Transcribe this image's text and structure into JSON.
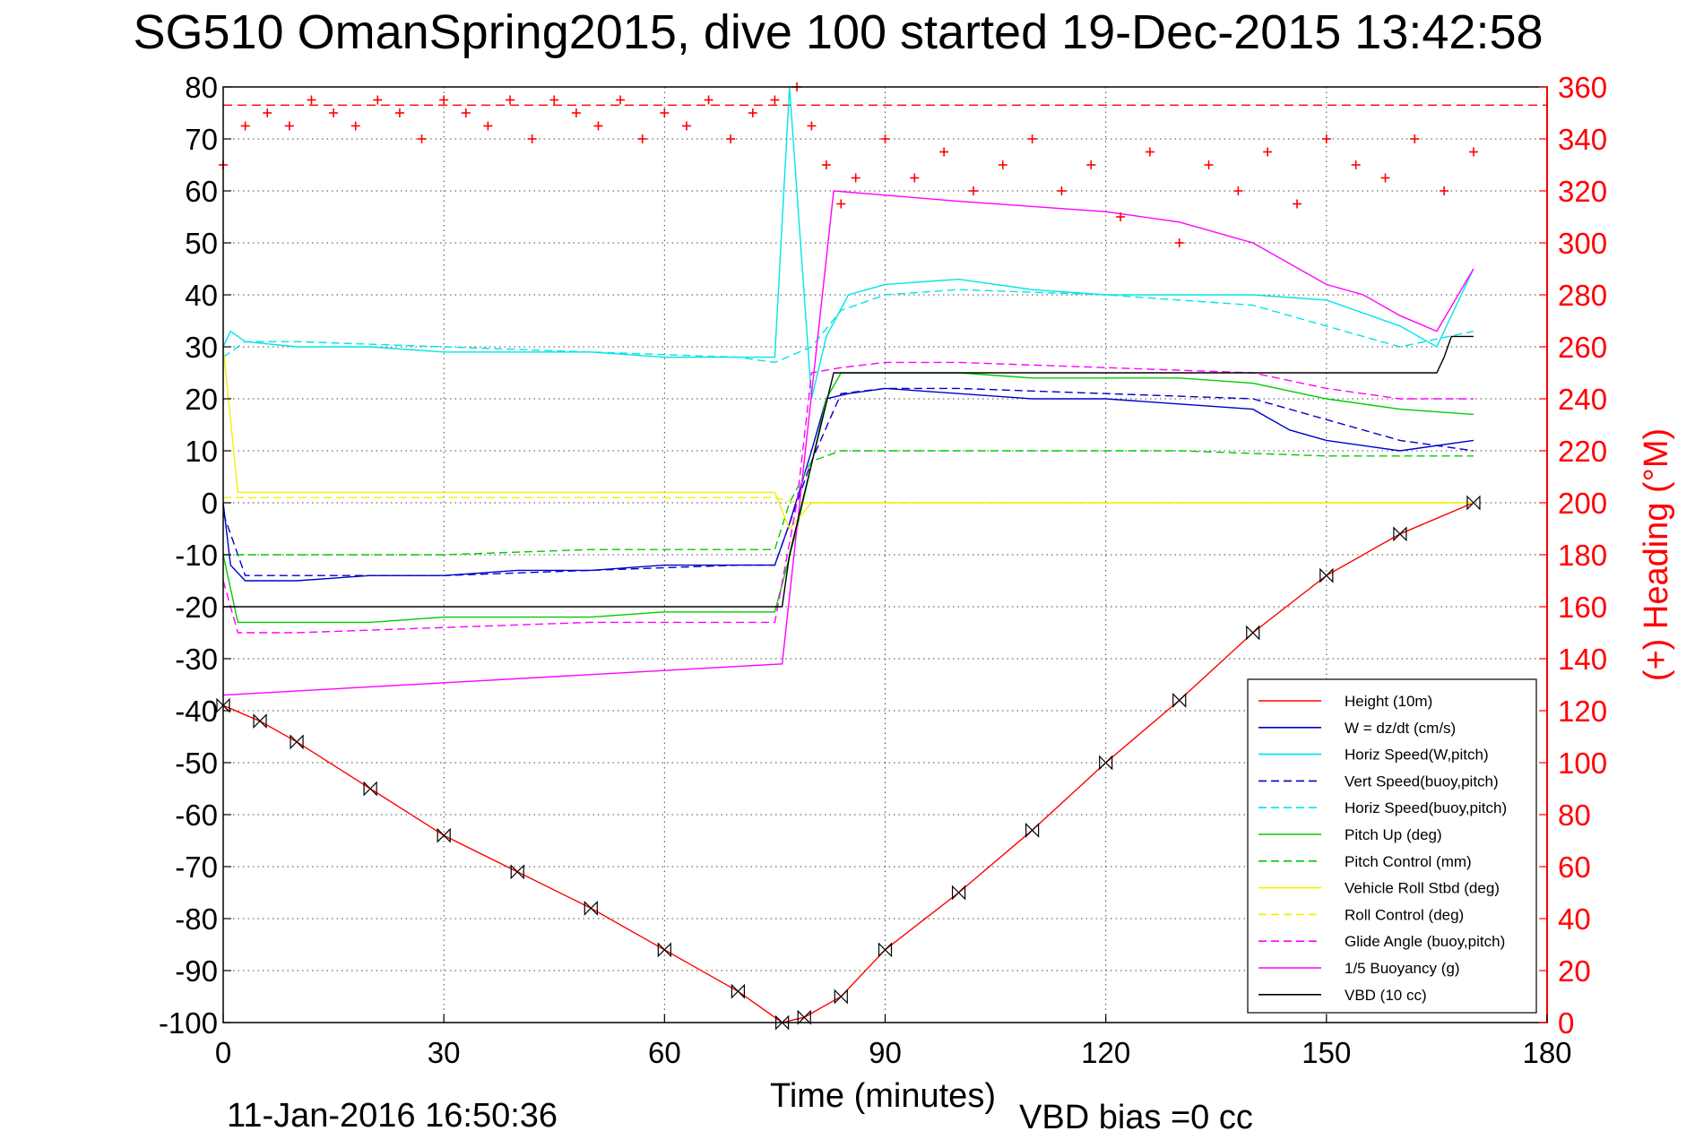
{
  "chart_data": {
    "type": "line",
    "title": "SG510 OmanSpring2015, dive 100 started 19-Dec-2015 13:42:58",
    "xlabel": "Time (minutes)",
    "ylabel_right": "(+) Heading (°M)",
    "xlim": [
      0,
      180
    ],
    "ylim": [
      -100,
      80
    ],
    "ylim_right": [
      0,
      360
    ],
    "x_ticks": [
      "0",
      "30",
      "60",
      "90",
      "120",
      "150",
      "180"
    ],
    "y_ticks": [
      "80",
      "70",
      "60",
      "50",
      "40",
      "30",
      "20",
      "10",
      "0",
      "-10",
      "-20",
      "-30",
      "-40",
      "-50",
      "-60",
      "-70",
      "-80",
      "-90",
      "-100"
    ],
    "y_right_ticks": [
      "360",
      "340",
      "320",
      "300",
      "280",
      "260",
      "240",
      "220",
      "200",
      "180",
      "160",
      "140",
      "120",
      "100",
      "80",
      "60",
      "40",
      "20",
      "0"
    ],
    "grid": true,
    "legend_position": "bottom-right",
    "timestamp": "11-Jan-2016 16:50:36",
    "vbd_bias": "VBD bias =0 cc",
    "series": [
      {
        "name": "Height (10m)",
        "color": "#ff0000",
        "style": "solid",
        "x": [
          0,
          5,
          10,
          20,
          30,
          40,
          50,
          60,
          70,
          76,
          79,
          84,
          90,
          100,
          110,
          120,
          130,
          140,
          150,
          160,
          170
        ],
        "y": [
          -39,
          -42,
          -46,
          -55,
          -64,
          -71,
          -78,
          -86,
          -94,
          -100,
          -99,
          -95,
          -86,
          -75,
          -63,
          -50,
          -38,
          -25,
          -14,
          -6,
          0
        ]
      },
      {
        "name": "W = dz/dt (cm/s)",
        "color": "#0000cc",
        "style": "solid",
        "x": [
          0,
          1,
          3,
          10,
          20,
          30,
          40,
          50,
          60,
          70,
          75,
          77,
          80,
          82,
          85,
          90,
          100,
          110,
          120,
          130,
          140,
          145,
          150,
          160,
          170
        ],
        "y": [
          0,
          -12,
          -15,
          -15,
          -14,
          -14,
          -13,
          -13,
          -12,
          -12,
          -12,
          -4,
          10,
          20,
          21,
          22,
          21,
          20,
          20,
          19,
          18,
          14,
          12,
          10,
          12
        ]
      },
      {
        "name": "Horiz Speed(W,pitch)",
        "color": "#00e5e5",
        "style": "solid",
        "x": [
          0,
          1,
          3,
          10,
          20,
          30,
          40,
          50,
          60,
          70,
          75,
          77,
          80,
          82,
          85,
          90,
          100,
          110,
          120,
          130,
          140,
          150,
          160,
          165,
          170
        ],
        "y": [
          30,
          33,
          31,
          30,
          30,
          29,
          29,
          29,
          28,
          28,
          28,
          80,
          20,
          32,
          40,
          42,
          43,
          41,
          40,
          40,
          40,
          39,
          34,
          30,
          45
        ]
      },
      {
        "name": "Vert Speed(buoy,pitch)",
        "color": "#0000cc",
        "style": "dashed",
        "x": [
          0,
          3,
          10,
          30,
          50,
          70,
          75,
          80,
          84,
          90,
          100,
          120,
          140,
          150,
          160,
          170
        ],
        "y": [
          -2,
          -14,
          -14,
          -14,
          -13,
          -12,
          -12,
          8,
          21,
          22,
          22,
          21,
          20,
          16,
          12,
          10
        ]
      },
      {
        "name": "Horiz Speed(buoy,pitch)",
        "color": "#00e5e5",
        "style": "dashed",
        "x": [
          0,
          3,
          10,
          30,
          50,
          70,
          75,
          80,
          84,
          90,
          100,
          120,
          140,
          150,
          160,
          170
        ],
        "y": [
          28,
          31,
          31,
          30,
          29,
          28,
          27,
          30,
          37,
          40,
          41,
          40,
          38,
          34,
          30,
          33
        ]
      },
      {
        "name": "Pitch Up (deg)",
        "color": "#00cc00",
        "style": "solid",
        "x": [
          0,
          2,
          10,
          20,
          30,
          40,
          50,
          60,
          70,
          75,
          78,
          82,
          84,
          90,
          100,
          110,
          120,
          130,
          140,
          150,
          160,
          170
        ],
        "y": [
          -10,
          -23,
          -23,
          -23,
          -22,
          -22,
          -22,
          -21,
          -21,
          -21,
          -5,
          20,
          25,
          25,
          25,
          24,
          24,
          24,
          23,
          20,
          18,
          17
        ]
      },
      {
        "name": "Pitch Control (mm)",
        "color": "#00cc00",
        "style": "dashed",
        "x": [
          0,
          2,
          30,
          50,
          60,
          75,
          77,
          80,
          84,
          100,
          130,
          150,
          170
        ],
        "y": [
          -10,
          -10,
          -10,
          -9,
          -9,
          -9,
          0,
          8,
          10,
          10,
          10,
          9,
          9
        ]
      },
      {
        "name": "Vehicle Roll Stbd (deg)",
        "color": "#f0f000",
        "style": "solid",
        "x": [
          0,
          2,
          6,
          10,
          20,
          30,
          40,
          50,
          60,
          70,
          75,
          77,
          80,
          84,
          90,
          100,
          110,
          120,
          130,
          140,
          150,
          160,
          170
        ],
        "y": [
          30,
          2,
          2,
          2,
          2,
          2,
          2,
          2,
          2,
          2,
          2,
          -5,
          0,
          0,
          0,
          0,
          0,
          0,
          0,
          0,
          0,
          0,
          0
        ]
      },
      {
        "name": "Roll Control (deg)",
        "color": "#f0f000",
        "style": "dashed",
        "x": [
          0,
          2,
          75,
          78,
          84,
          170
        ],
        "y": [
          1,
          1,
          1,
          0,
          0,
          0
        ]
      },
      {
        "name": "Glide Angle (buoy,pitch)",
        "color": "#ff00ff",
        "style": "dashed",
        "x": [
          0,
          2,
          10,
          30,
          50,
          60,
          75,
          78,
          80,
          84,
          90,
          100,
          120,
          140,
          150,
          160,
          170
        ],
        "y": [
          -15,
          -25,
          -25,
          -24,
          -23,
          -23,
          -23,
          0,
          25,
          26,
          27,
          27,
          26,
          25,
          22,
          20,
          20
        ]
      },
      {
        "name": "1/5 Buoyancy (g)",
        "color": "#ff00ff",
        "style": "solid",
        "x": [
          0,
          76,
          83,
          100,
          120,
          130,
          140,
          150,
          155,
          160,
          165,
          170
        ],
        "y": [
          -37,
          -31,
          60,
          58,
          56,
          54,
          50,
          42,
          40,
          36,
          33,
          45
        ]
      },
      {
        "name": "VBD (10 cc)",
        "color": "#000000",
        "style": "solid",
        "x": [
          0,
          76,
          77,
          83,
          120,
          150,
          165,
          166,
          167,
          170
        ],
        "y": [
          -20,
          -20,
          -10,
          25,
          25,
          25,
          25,
          28,
          32,
          32
        ]
      },
      {
        "name": "Heading",
        "color": "#ff0000",
        "style": "markers",
        "axis": "right",
        "x": [
          0,
          3,
          6,
          9,
          12,
          15,
          18,
          21,
          24,
          27,
          30,
          33,
          36,
          39,
          42,
          45,
          48,
          51,
          54,
          57,
          60,
          63,
          66,
          69,
          72,
          75,
          78,
          80,
          82,
          84,
          86,
          90,
          94,
          98,
          102,
          106,
          110,
          114,
          118,
          122,
          126,
          130,
          134,
          138,
          142,
          146,
          150,
          154,
          158,
          162,
          166,
          170
        ],
        "y": [
          330,
          345,
          350,
          345,
          355,
          350,
          345,
          355,
          350,
          340,
          355,
          350,
          345,
          355,
          340,
          355,
          350,
          345,
          355,
          340,
          350,
          345,
          355,
          340,
          350,
          355,
          360,
          345,
          330,
          315,
          325,
          340,
          325,
          335,
          320,
          330,
          340,
          320,
          330,
          310,
          335,
          300,
          330,
          320,
          335,
          315,
          340,
          330,
          325,
          340,
          320,
          335
        ]
      }
    ],
    "heading_ref": 353
  }
}
